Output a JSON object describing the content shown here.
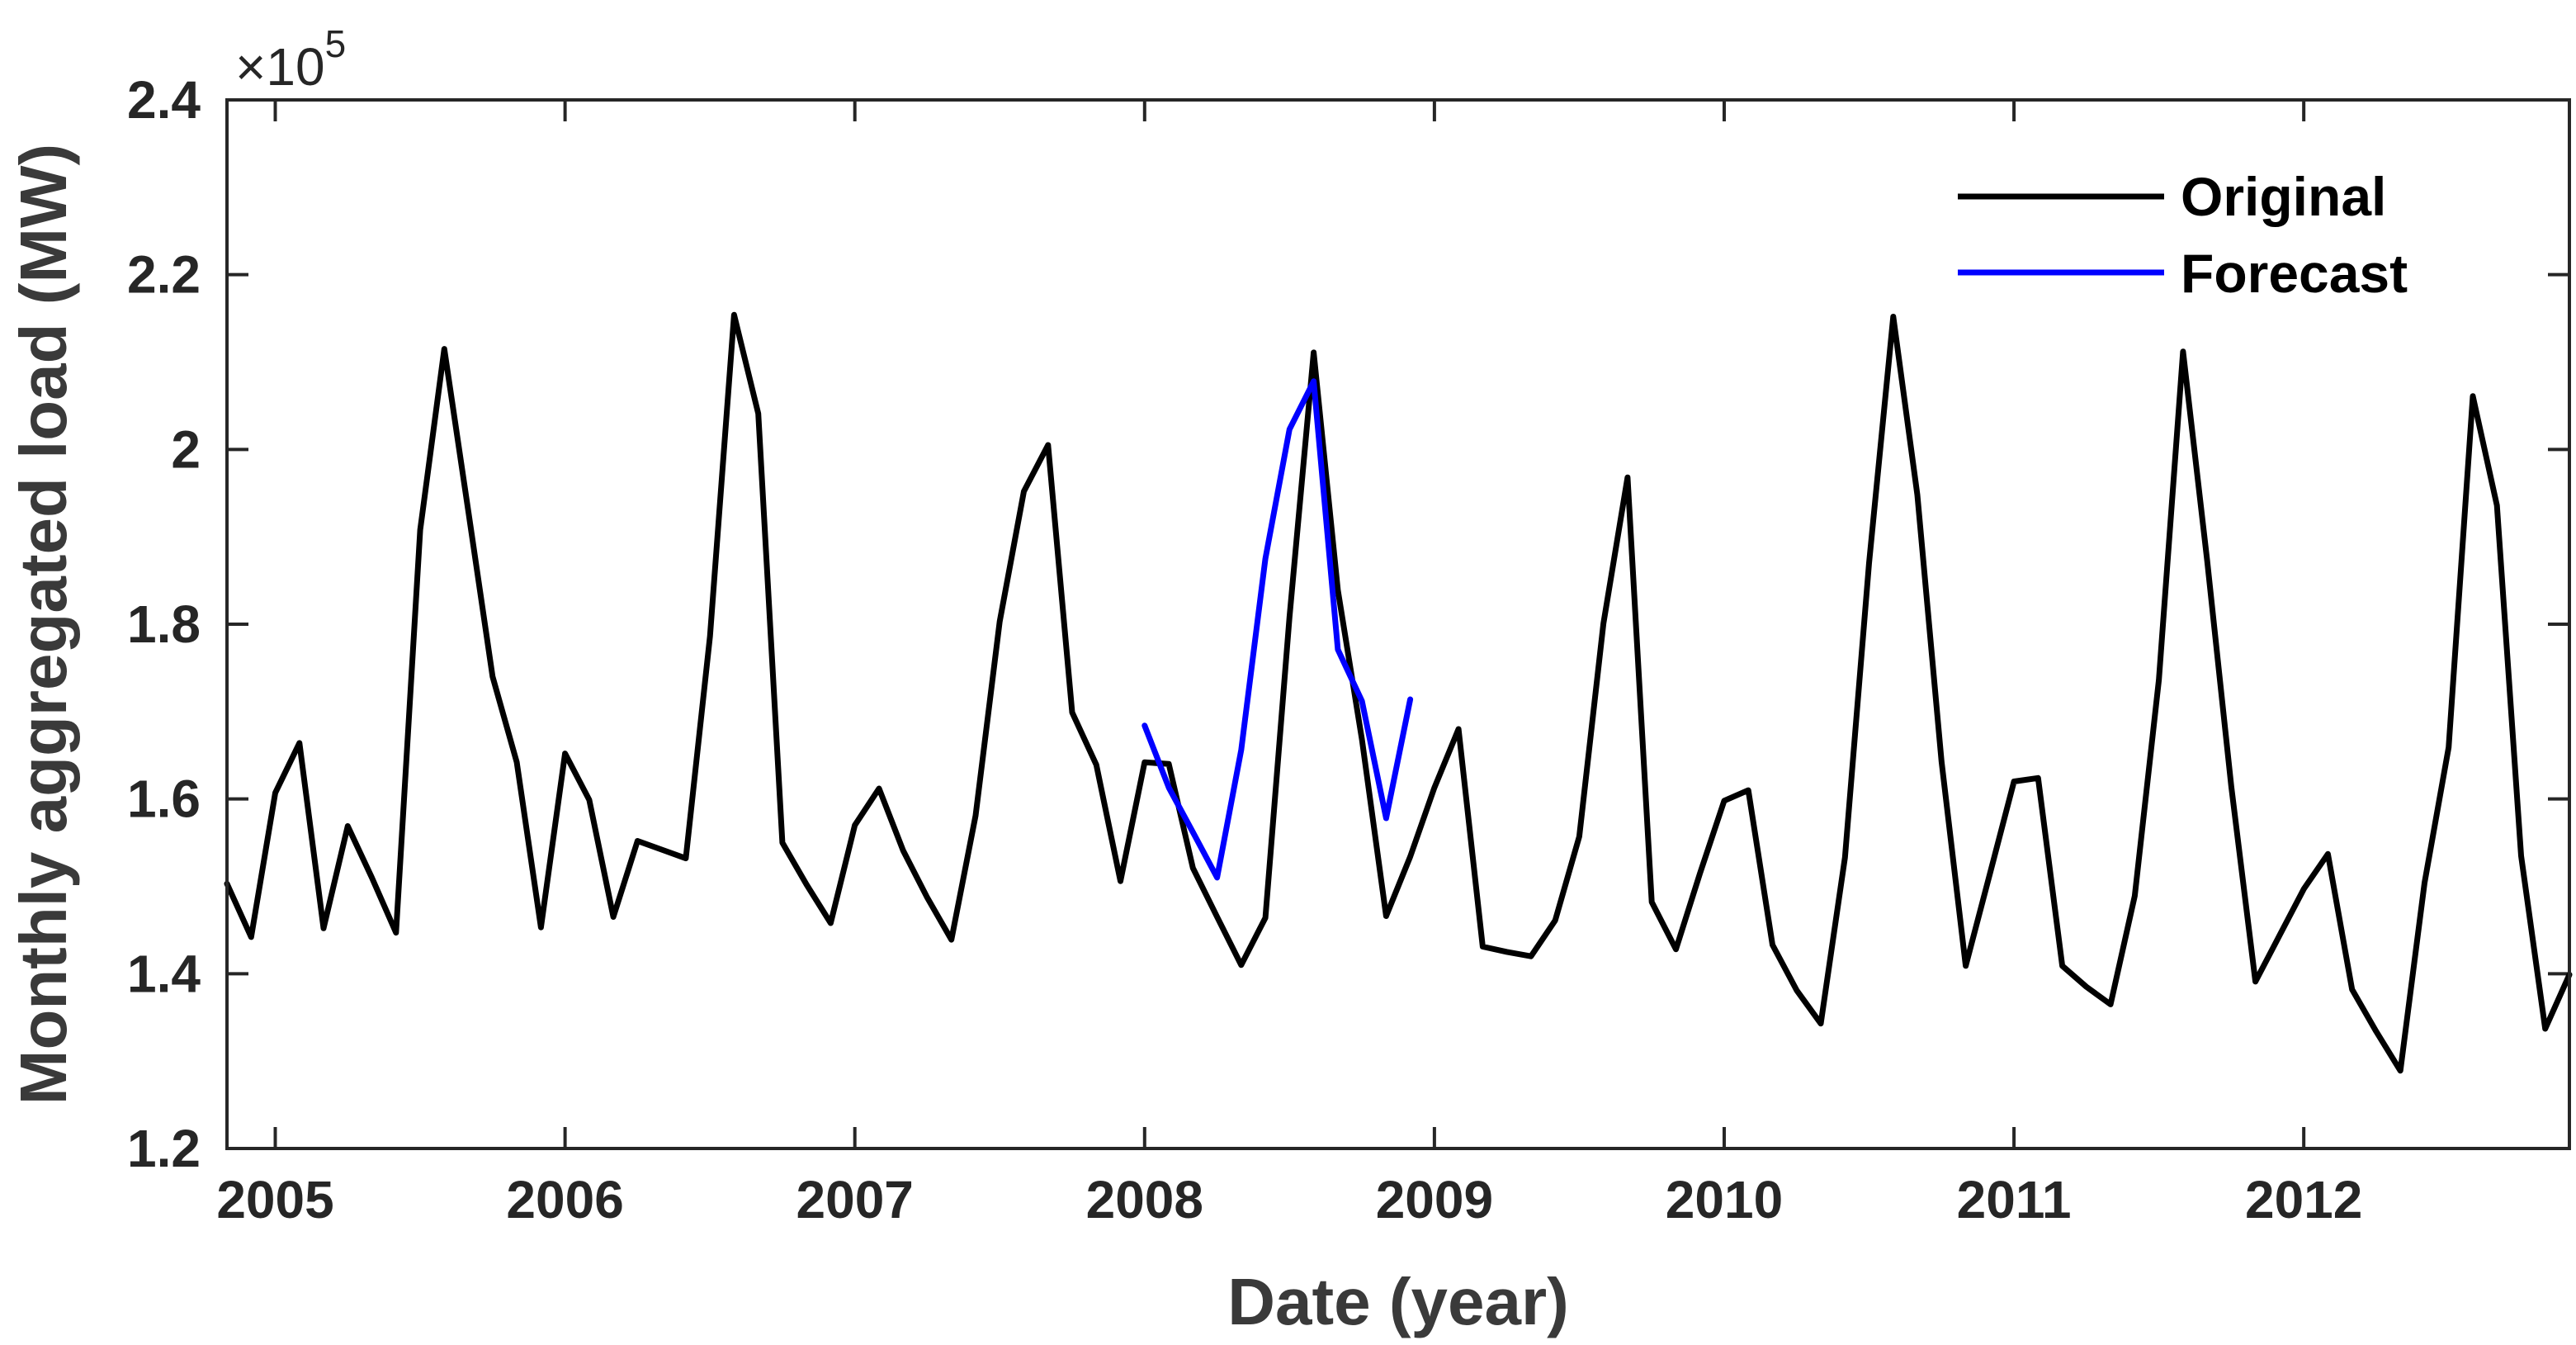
{
  "chart_data": {
    "type": "line",
    "xlabel": "Date (year)",
    "ylabel": "Monthly aggregated load (MW)",
    "y_exponent_label": "×10",
    "y_exponent_power": "5",
    "xlim": [
      "2004-11",
      "2012-12"
    ],
    "ylim": [
      120000,
      240000
    ],
    "x_ticks": [
      "2005",
      "2006",
      "2007",
      "2008",
      "2009",
      "2010",
      "2011",
      "2012"
    ],
    "y_ticks": [
      {
        "value": 120000,
        "label": "1.2"
      },
      {
        "value": 140000,
        "label": "1.4"
      },
      {
        "value": 160000,
        "label": "1.6"
      },
      {
        "value": 180000,
        "label": "1.8"
      },
      {
        "value": 200000,
        "label": "2"
      },
      {
        "value": 220000,
        "label": "2.2"
      },
      {
        "value": 240000,
        "label": "2.4"
      }
    ],
    "legend_position": "top-right",
    "series": [
      {
        "name": "Original",
        "color": "#000000",
        "x": [
          "2004-11",
          "2004-12",
          "2005-01",
          "2005-02",
          "2005-03",
          "2005-04",
          "2005-05",
          "2005-06",
          "2005-07",
          "2005-08",
          "2005-09",
          "2005-10",
          "2005-11",
          "2005-12",
          "2006-01",
          "2006-02",
          "2006-03",
          "2006-04",
          "2006-05",
          "2006-06",
          "2006-07",
          "2006-08",
          "2006-09",
          "2006-10",
          "2006-11",
          "2006-12",
          "2007-01",
          "2007-02",
          "2007-03",
          "2007-04",
          "2007-05",
          "2007-06",
          "2007-07",
          "2007-08",
          "2007-09",
          "2007-10",
          "2007-11",
          "2007-12",
          "2008-01",
          "2008-02",
          "2008-03",
          "2008-04",
          "2008-05",
          "2008-06",
          "2008-07",
          "2008-08",
          "2008-09",
          "2008-10",
          "2008-11",
          "2008-12",
          "2009-01",
          "2009-02",
          "2009-03",
          "2009-04",
          "2009-05",
          "2009-06",
          "2009-07",
          "2009-08",
          "2009-09",
          "2009-10",
          "2009-11",
          "2009-12",
          "2010-01",
          "2010-02",
          "2010-03",
          "2010-04",
          "2010-05",
          "2010-06",
          "2010-07",
          "2010-08",
          "2010-09",
          "2010-10",
          "2010-11",
          "2010-12",
          "2011-01",
          "2011-02",
          "2011-03",
          "2011-04",
          "2011-05",
          "2011-06",
          "2011-07",
          "2011-08",
          "2011-09",
          "2011-10",
          "2011-11",
          "2011-12",
          "2012-01",
          "2012-02",
          "2012-03",
          "2012-04",
          "2012-05",
          "2012-06",
          "2012-07",
          "2012-08",
          "2012-09",
          "2012-10",
          "2012-11",
          "2012-12"
        ],
        "values": [
          150300,
          144200,
          160700,
          166400,
          145200,
          156900,
          151000,
          144700,
          190800,
          211500,
          192800,
          174000,
          164200,
          145300,
          165200,
          159900,
          146500,
          155200,
          154200,
          153200,
          178600,
          215400,
          204100,
          155000,
          150200,
          145800,
          157000,
          161200,
          154100,
          148700,
          143900,
          158100,
          180300,
          195200,
          200500,
          169900,
          163900,
          150600,
          164200,
          164000,
          152100,
          146500,
          141000,
          146400,
          180800,
          211100,
          183900,
          166800,
          146600,
          153400,
          161300,
          168000,
          143100,
          142500,
          142000,
          146100,
          155700,
          180100,
          196800,
          148200,
          142800,
          151500,
          159800,
          161000,
          143300,
          138100,
          134300,
          153300,
          187000,
          215200,
          194800,
          164300,
          140900,
          151400,
          162000,
          162400,
          140900,
          138500,
          136500,
          148900,
          173600,
          211200,
          187300,
          161400,
          139100,
          144400,
          149700,
          153700,
          138200,
          133400,
          128900,
          150400,
          165900,
          206100,
          193600,
          153500,
          133700,
          139900
        ]
      },
      {
        "name": "Forecast",
        "color": "#0000ff",
        "x": [
          "2008-01",
          "2008-02",
          "2008-03",
          "2008-04",
          "2008-05",
          "2008-06",
          "2008-07",
          "2008-08",
          "2008-09",
          "2008-10",
          "2008-11",
          "2008-12"
        ],
        "values": [
          168400,
          161300,
          156200,
          151000,
          165600,
          187500,
          202300,
          207800,
          177100,
          171200,
          157800,
          171400
        ]
      }
    ]
  }
}
